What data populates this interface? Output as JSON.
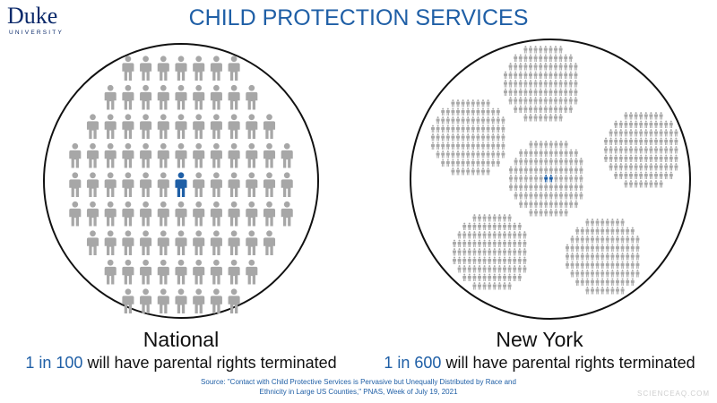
{
  "header": {
    "logo": "Duke",
    "logo_sub": "UNIVERSITY",
    "title": "CHILD PROTECTION SERVICES"
  },
  "panels": [
    {
      "label": "National",
      "highlight": "1 in 100",
      "text": "will have parental rights terminated"
    },
    {
      "label": "New York",
      "highlight": "1 in 600",
      "text": "will have parental rights terminated"
    }
  ],
  "source": [
    "Source: \"Contact with Child Protective Services is Pervasive but Unequally Distributed by Race and",
    "Ethnicity in Large US Counties,\" PNAS, Week of July 19, 2021"
  ],
  "watermark": "SCIENCEAQ.COM"
}
